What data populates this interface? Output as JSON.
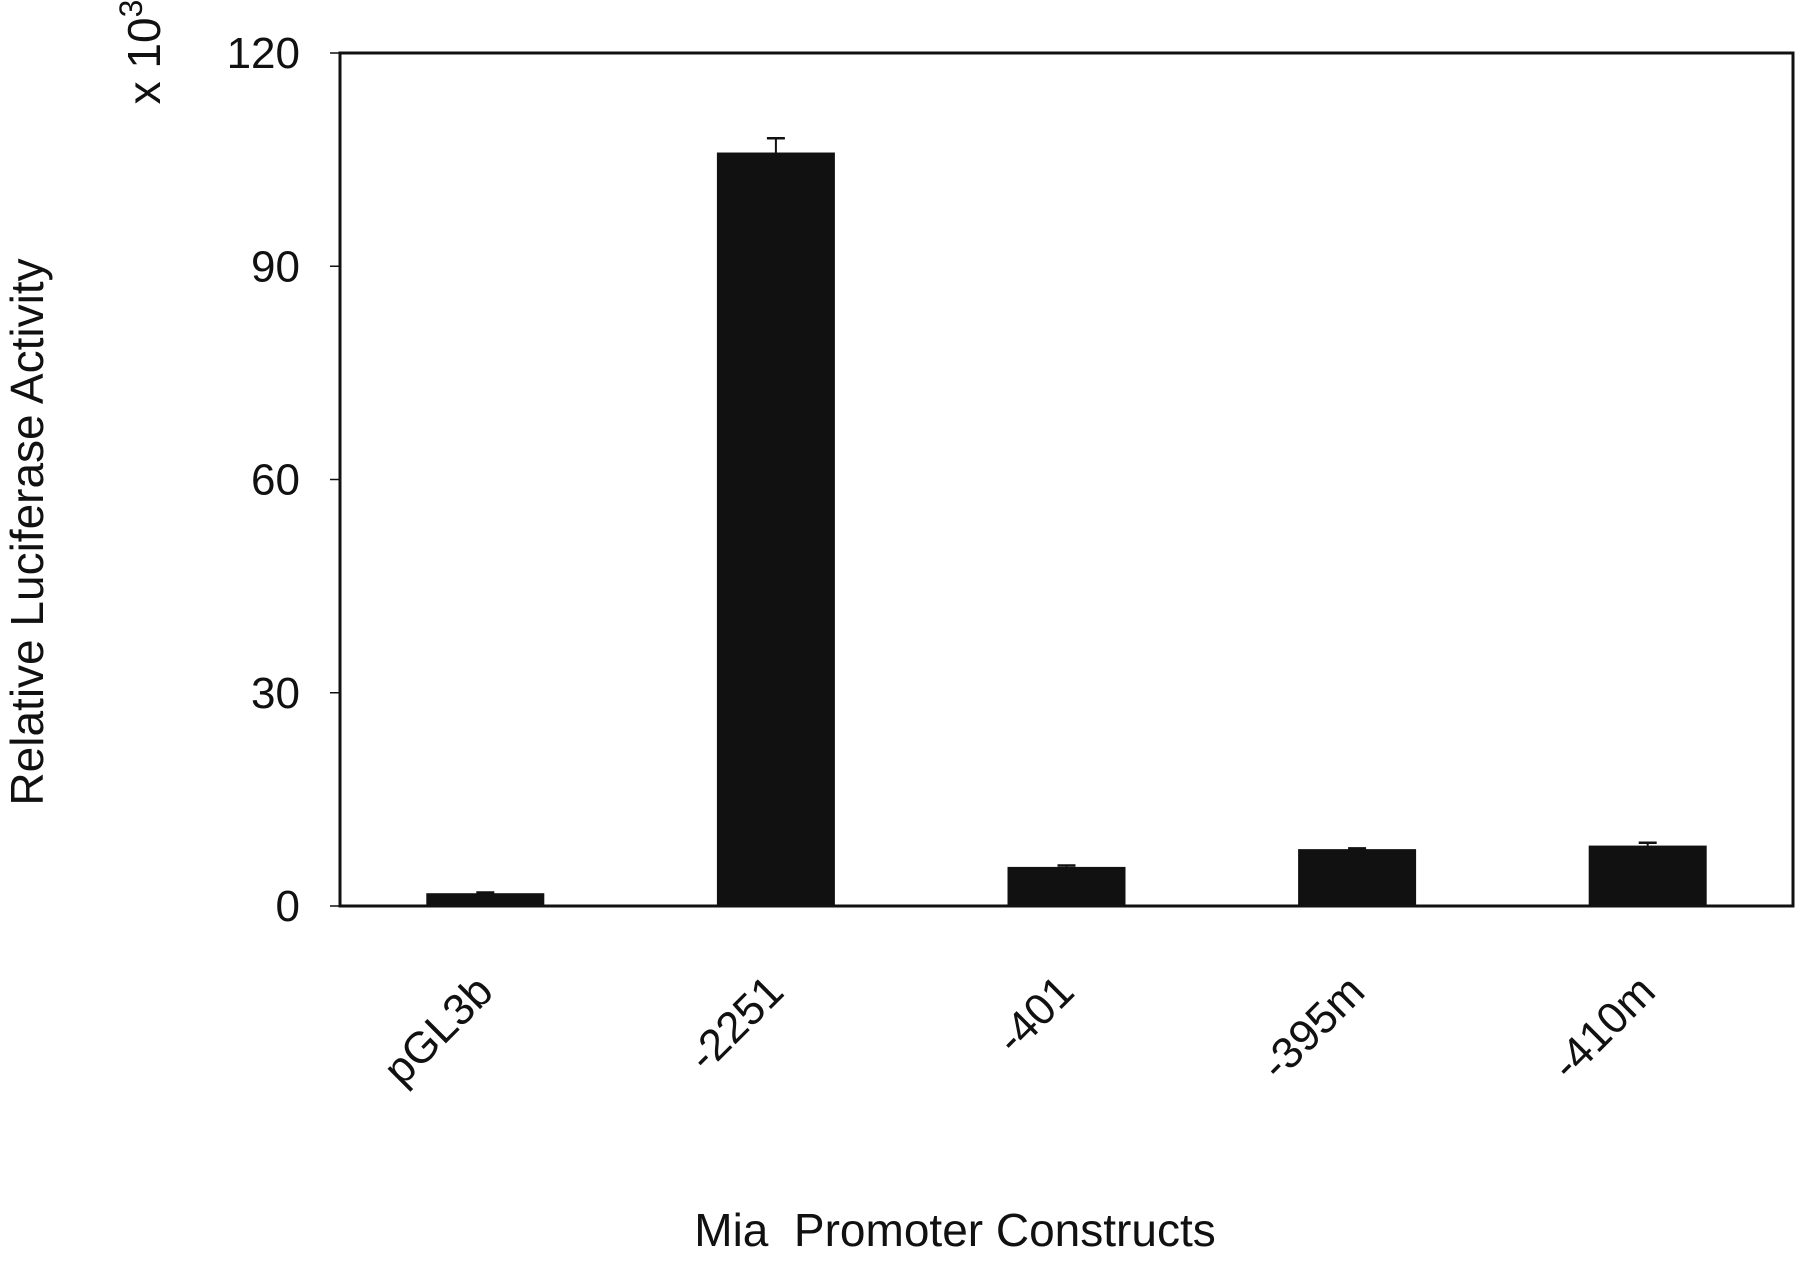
{
  "chart_data": {
    "type": "bar",
    "title": "",
    "xlabel": "Mia  Promoter Constructs",
    "ylabel": "Relative Luciferase Activity",
    "y_multiplier": {
      "prefix": "x 10",
      "exponent": "3"
    },
    "categories": [
      "pGL3b",
      "-2251",
      "-401",
      "-395m",
      "-410m"
    ],
    "values": [
      1.8,
      106,
      5.5,
      8,
      8.5
    ],
    "errors": [
      0.1,
      2,
      0.2,
      0.1,
      0.4
    ],
    "ylim": [
      0,
      120
    ],
    "yticks": [
      0,
      30,
      60,
      90,
      120
    ],
    "ytick_labels": [
      "0",
      "30",
      "60",
      "90",
      "120"
    ],
    "grid": false,
    "legend": "none",
    "colors": {
      "bar": "#111111",
      "axis": "#111111",
      "background": "#ffffff"
    }
  }
}
